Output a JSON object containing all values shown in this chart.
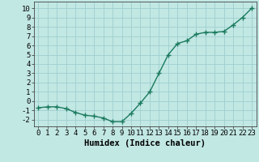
{
  "x": [
    0,
    1,
    2,
    3,
    4,
    5,
    6,
    7,
    8,
    9,
    10,
    11,
    12,
    13,
    14,
    15,
    16,
    17,
    18,
    19,
    20,
    21,
    22,
    23
  ],
  "y": [
    -0.7,
    -0.6,
    -0.6,
    -0.8,
    -1.2,
    -1.5,
    -1.6,
    -1.8,
    -2.2,
    -2.2,
    -1.3,
    -0.2,
    1.0,
    3.0,
    5.0,
    6.2,
    6.5,
    7.2,
    7.4,
    7.4,
    7.5,
    8.2,
    9.0,
    10.0
  ],
  "line_color": "#1a7a5e",
  "marker": "+",
  "background_color": "#c2e8e4",
  "grid_color": "#9ecece",
  "xlabel": "Humidex (Indice chaleur)",
  "xlim": [
    -0.5,
    23.5
  ],
  "ylim": [
    -2.7,
    10.7
  ],
  "yticks": [
    -2,
    -1,
    0,
    1,
    2,
    3,
    4,
    5,
    6,
    7,
    8,
    9,
    10
  ],
  "xticks": [
    0,
    1,
    2,
    3,
    4,
    5,
    6,
    7,
    8,
    9,
    10,
    11,
    12,
    13,
    14,
    15,
    16,
    17,
    18,
    19,
    20,
    21,
    22,
    23
  ],
  "tick_label_fontsize": 6.5,
  "xlabel_fontsize": 7.5,
  "line_width": 1.0,
  "marker_size": 4,
  "marker_ew": 1.0
}
